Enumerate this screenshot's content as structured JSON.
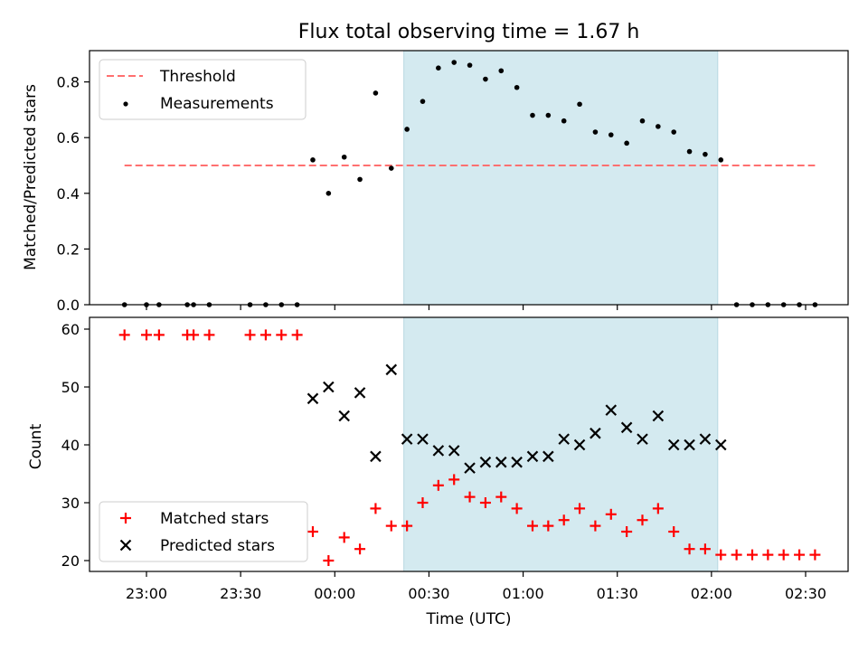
{
  "chart_data": [
    {
      "type": "scatter",
      "title": "Flux total observing time = 1.67 h",
      "xlabel": "",
      "ylabel": "Matched/Predicted stars",
      "ylim": [
        0,
        0.9
      ],
      "yticks": [
        "0.0",
        "0.2",
        "0.4",
        "0.6",
        "0.8"
      ],
      "shaded_region": {
        "from": "00:22",
        "to": "02:02",
        "color": "#d4eaf0"
      },
      "legend": {
        "placement": "upper left"
      },
      "series": [
        {
          "name": "Threshold",
          "kind": "dashed-line",
          "color": "#ff7070",
          "x": [
            "22:53",
            "02:33"
          ],
          "y": [
            0.5,
            0.5
          ]
        },
        {
          "name": "Measurements",
          "kind": "points",
          "color": "#000000",
          "x": [
            "22:53",
            "23:00",
            "23:04",
            "23:13",
            "23:15",
            "23:20",
            "23:33",
            "23:38",
            "23:43",
            "23:48",
            "23:53",
            "23:58",
            "00:03",
            "00:08",
            "00:13",
            "00:18",
            "00:23",
            "00:28",
            "00:33",
            "00:38",
            "00:43",
            "00:48",
            "00:53",
            "00:58",
            "01:03",
            "01:08",
            "01:13",
            "01:18",
            "01:23",
            "01:28",
            "01:33",
            "01:38",
            "01:43",
            "01:48",
            "01:53",
            "01:58",
            "02:03",
            "02:08",
            "02:13",
            "02:18",
            "02:23",
            "02:28",
            "02:33"
          ],
          "y": [
            0,
            0,
            0,
            0,
            0,
            0,
            0,
            0,
            0,
            0,
            0.52,
            0.4,
            0.53,
            0.45,
            0.76,
            0.49,
            0.63,
            0.73,
            0.85,
            0.87,
            0.86,
            0.81,
            0.84,
            0.78,
            0.68,
            0.68,
            0.66,
            0.72,
            0.62,
            0.61,
            0.58,
            0.66,
            0.64,
            0.62,
            0.55,
            0.54,
            0.52,
            0,
            0,
            0,
            0,
            0,
            0
          ]
        }
      ]
    },
    {
      "type": "scatter",
      "title": "",
      "xlabel": "Time (UTC)",
      "ylabel": "Count",
      "ylim": [
        18,
        61
      ],
      "yticks": [
        "20",
        "30",
        "40",
        "50",
        "60"
      ],
      "xticks": [
        "23:00",
        "23:30",
        "00:00",
        "00:30",
        "01:00",
        "01:30",
        "02:00",
        "02:30"
      ],
      "shaded_region": {
        "from": "00:22",
        "to": "02:02",
        "color": "#d4eaf0"
      },
      "legend": {
        "placement": "lower left"
      },
      "series": [
        {
          "name": "Matched stars",
          "kind": "plus",
          "color": "#ff0000",
          "x": [
            "22:53",
            "23:00",
            "23:04",
            "23:13",
            "23:15",
            "23:20",
            "23:33",
            "23:38",
            "23:43",
            "23:48",
            "23:53",
            "23:58",
            "00:03",
            "00:08",
            "00:13",
            "00:18",
            "00:23",
            "00:28",
            "00:33",
            "00:38",
            "00:43",
            "00:48",
            "00:53",
            "00:58",
            "01:03",
            "01:08",
            "01:13",
            "01:18",
            "01:23",
            "01:28",
            "01:33",
            "01:38",
            "01:43",
            "01:48",
            "01:53",
            "01:58",
            "02:03",
            "02:08",
            "02:13",
            "02:18",
            "02:23",
            "02:28",
            "02:33"
          ],
          "y": [
            59,
            59,
            59,
            59,
            59,
            59,
            59,
            59,
            59,
            59,
            25,
            20,
            24,
            22,
            29,
            26,
            26,
            30,
            33,
            34,
            31,
            30,
            31,
            29,
            26,
            26,
            27,
            29,
            26,
            28,
            25,
            27,
            29,
            25,
            22,
            22,
            21,
            21,
            21,
            21,
            21,
            21,
            21
          ]
        },
        {
          "name": "Predicted stars",
          "kind": "x",
          "color": "#000000",
          "x": [
            "23:53",
            "23:58",
            "00:03",
            "00:08",
            "00:13",
            "00:18",
            "00:23",
            "00:28",
            "00:33",
            "00:38",
            "00:43",
            "00:48",
            "00:53",
            "00:58",
            "01:03",
            "01:08",
            "01:13",
            "01:18",
            "01:23",
            "01:28",
            "01:33",
            "01:38",
            "01:43",
            "01:48",
            "01:53",
            "01:58",
            "02:03"
          ],
          "y": [
            48,
            50,
            45,
            49,
            38,
            53,
            41,
            41,
            39,
            39,
            36,
            37,
            37,
            37,
            38,
            38,
            41,
            40,
            42,
            46,
            43,
            41,
            45,
            40,
            40,
            41,
            40
          ]
        }
      ]
    }
  ]
}
